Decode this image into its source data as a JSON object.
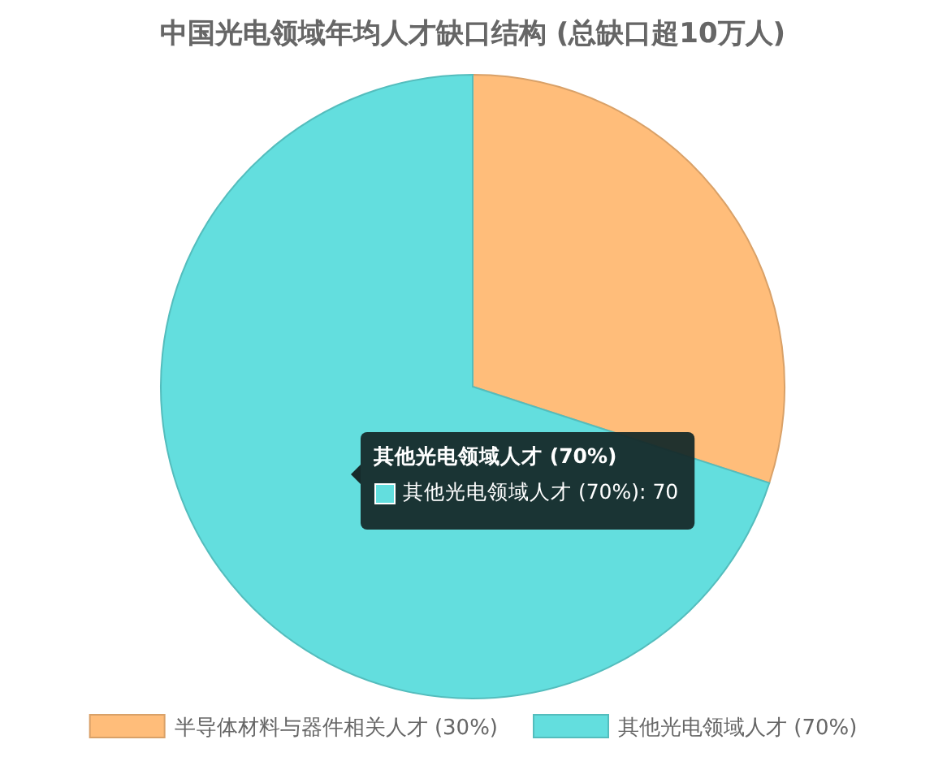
{
  "chart_data": {
    "type": "pie",
    "title": "中国光电领域年均人才缺口结构 (总缺口超10万人)",
    "categories": [
      "半导体材料与器件相关人才 (30%)",
      "其他光电领域人才 (70%)"
    ],
    "values": [
      30,
      70
    ],
    "colors": [
      "#ffbd7a",
      "#63dede"
    ],
    "legend": "bottom",
    "annotations": [
      "其他光电领域人才 (70%)",
      "其他光电领域人才 (70%): 70"
    ]
  }
}
